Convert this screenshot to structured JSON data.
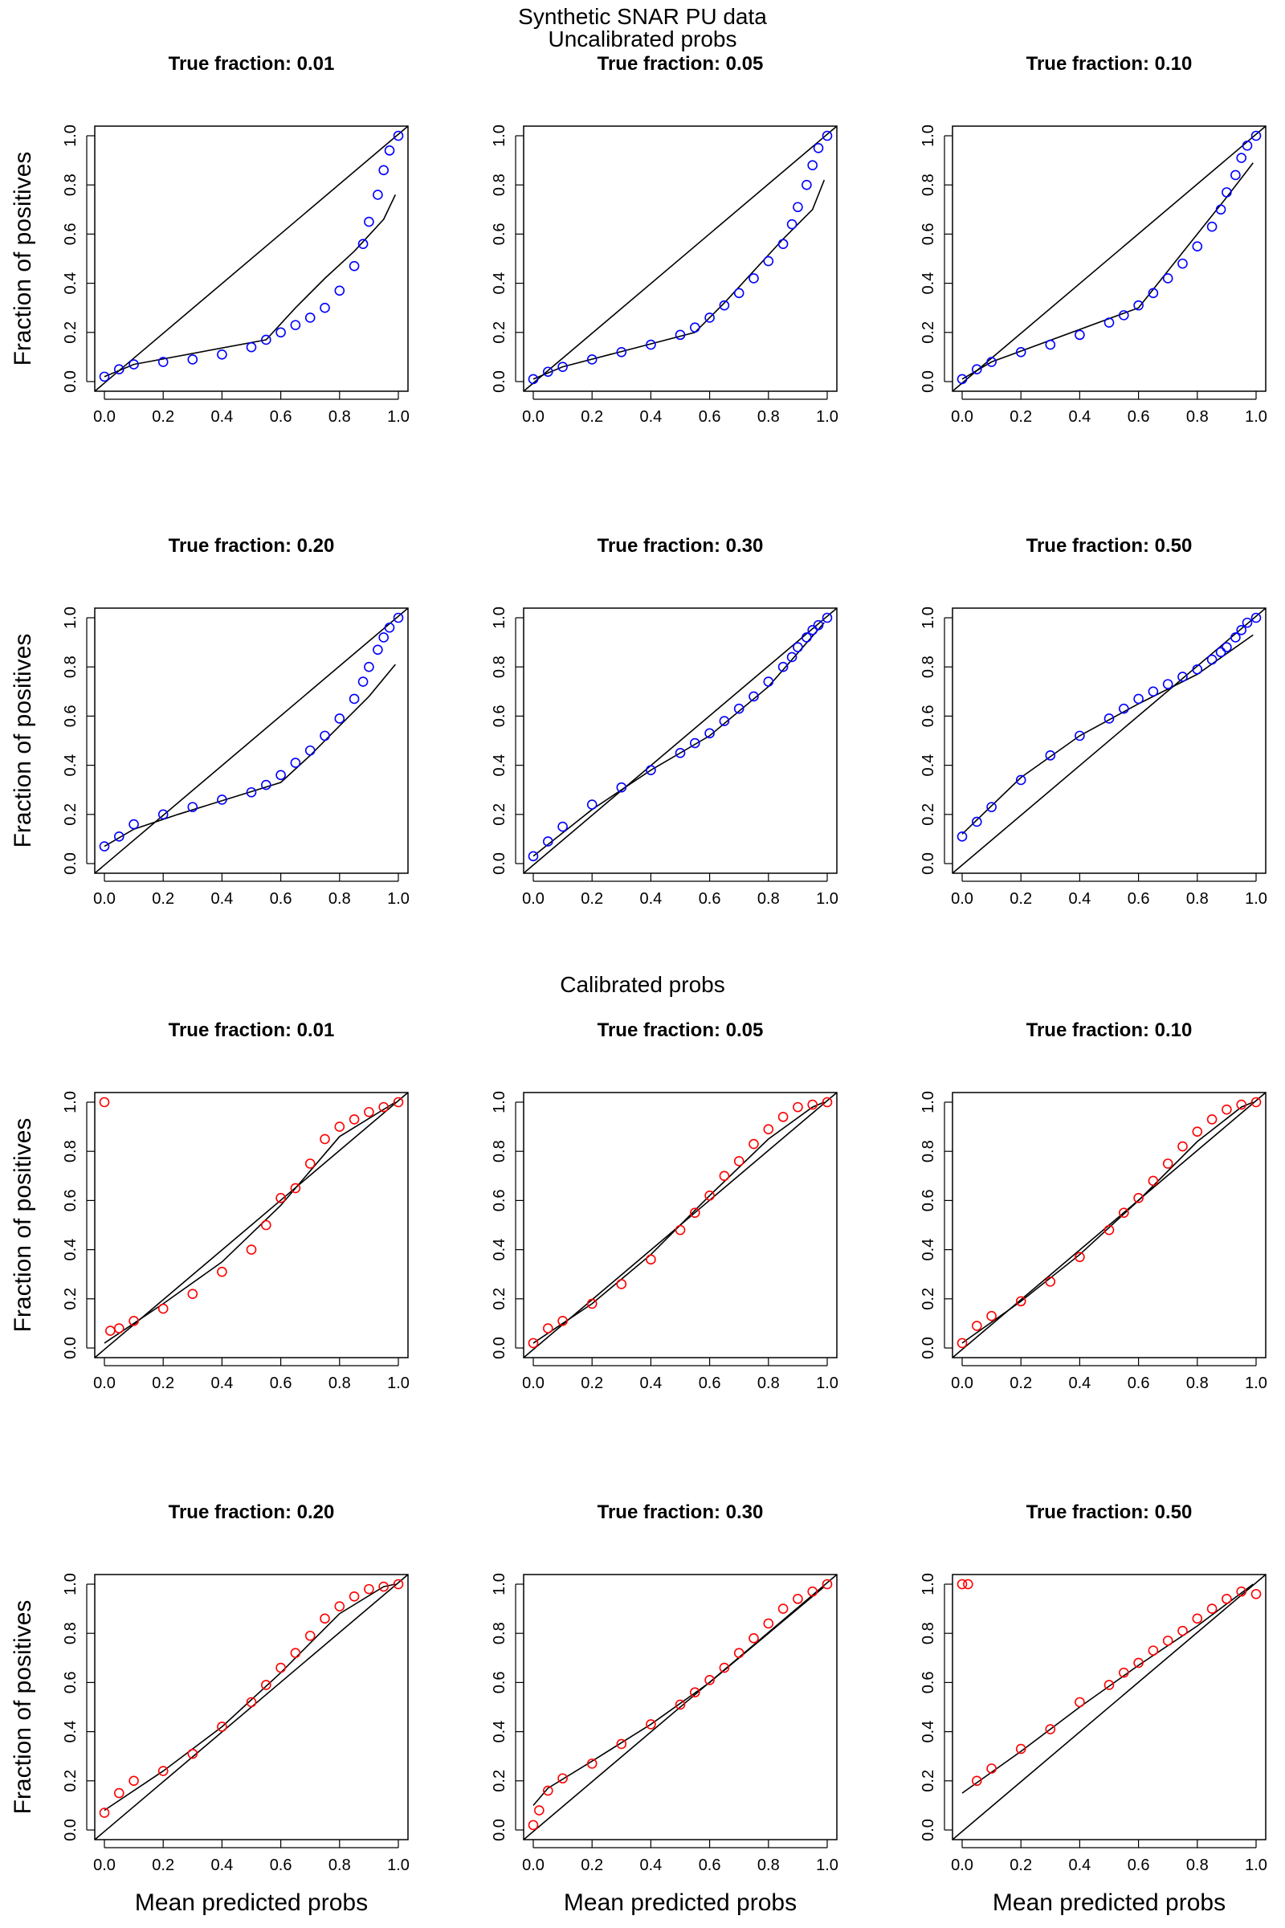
{
  "figure": {
    "main_title": "Synthetic SNAR PU data",
    "main_title_color": "#a52a2a",
    "section_uncalibrated": "Uncalibrated probs",
    "section_uncalibrated_color": "#0000ff",
    "section_calibrated": "Calibrated probs",
    "section_calibrated_color": "#ff0000",
    "ylabel": "Fraction of positives",
    "xlabel": "Mean predicted probs",
    "tick_labels": [
      "0.0",
      "0.2",
      "0.4",
      "0.6",
      "0.8",
      "1.0"
    ]
  },
  "chart_data": [
    {
      "type": "scatter",
      "group": "uncalibrated",
      "title": "True fraction: 0.01",
      "xlim": [
        0,
        1
      ],
      "ylim": [
        0,
        1
      ],
      "xlabel": "",
      "ylabel": "Fraction of positives",
      "point_color": "#0000ff",
      "points": {
        "x": [
          0.0,
          0.05,
          0.1,
          0.2,
          0.3,
          0.4,
          0.5,
          0.55,
          0.6,
          0.65,
          0.7,
          0.75,
          0.8,
          0.85,
          0.88,
          0.9,
          0.93,
          0.95,
          0.97,
          1.0
        ],
        "y": [
          0.02,
          0.05,
          0.07,
          0.08,
          0.09,
          0.11,
          0.14,
          0.17,
          0.2,
          0.23,
          0.26,
          0.3,
          0.37,
          0.47,
          0.56,
          0.65,
          0.76,
          0.86,
          0.94,
          1.0
        ]
      },
      "fit_line": {
        "x": [
          0.0,
          0.1,
          0.55,
          0.65,
          0.75,
          0.85,
          0.95,
          0.99
        ],
        "y": [
          0.02,
          0.07,
          0.17,
          0.3,
          0.42,
          0.53,
          0.66,
          0.76
        ]
      }
    },
    {
      "type": "scatter",
      "group": "uncalibrated",
      "title": "True fraction: 0.05",
      "xlim": [
        0,
        1
      ],
      "ylim": [
        0,
        1
      ],
      "xlabel": "",
      "ylabel": "",
      "point_color": "#0000ff",
      "points": {
        "x": [
          0.0,
          0.05,
          0.1,
          0.2,
          0.3,
          0.4,
          0.5,
          0.55,
          0.6,
          0.65,
          0.7,
          0.75,
          0.8,
          0.85,
          0.88,
          0.9,
          0.93,
          0.95,
          0.97,
          1.0
        ],
        "y": [
          0.01,
          0.04,
          0.06,
          0.09,
          0.12,
          0.15,
          0.19,
          0.22,
          0.26,
          0.31,
          0.36,
          0.42,
          0.49,
          0.56,
          0.64,
          0.71,
          0.8,
          0.88,
          0.95,
          1.0
        ]
      },
      "fit_line": {
        "x": [
          0.0,
          0.1,
          0.55,
          0.65,
          0.75,
          0.85,
          0.95,
          0.99
        ],
        "y": [
          0.01,
          0.06,
          0.2,
          0.32,
          0.45,
          0.58,
          0.7,
          0.82
        ]
      }
    },
    {
      "type": "scatter",
      "group": "uncalibrated",
      "title": "True fraction: 0.10",
      "xlim": [
        0,
        1
      ],
      "ylim": [
        0,
        1
      ],
      "xlabel": "",
      "ylabel": "",
      "point_color": "#0000ff",
      "points": {
        "x": [
          0.0,
          0.05,
          0.1,
          0.2,
          0.3,
          0.4,
          0.5,
          0.55,
          0.6,
          0.65,
          0.7,
          0.75,
          0.8,
          0.85,
          0.88,
          0.9,
          0.93,
          0.95,
          0.97,
          1.0
        ],
        "y": [
          0.01,
          0.05,
          0.08,
          0.12,
          0.15,
          0.19,
          0.24,
          0.27,
          0.31,
          0.36,
          0.42,
          0.48,
          0.55,
          0.63,
          0.7,
          0.77,
          0.84,
          0.91,
          0.96,
          1.0
        ]
      },
      "fit_line": {
        "x": [
          0.0,
          0.1,
          0.6,
          0.7,
          0.8,
          0.9,
          0.99
        ],
        "y": [
          0.01,
          0.08,
          0.3,
          0.45,
          0.6,
          0.75,
          0.89
        ]
      }
    },
    {
      "type": "scatter",
      "group": "uncalibrated",
      "title": "True fraction: 0.20",
      "xlim": [
        0,
        1
      ],
      "ylim": [
        0,
        1
      ],
      "xlabel": "",
      "ylabel": "Fraction of positives",
      "point_color": "#0000ff",
      "points": {
        "x": [
          0.0,
          0.05,
          0.1,
          0.2,
          0.3,
          0.4,
          0.5,
          0.55,
          0.6,
          0.65,
          0.7,
          0.75,
          0.8,
          0.85,
          0.88,
          0.9,
          0.93,
          0.95,
          0.97,
          1.0
        ],
        "y": [
          0.07,
          0.11,
          0.16,
          0.2,
          0.23,
          0.26,
          0.29,
          0.32,
          0.36,
          0.41,
          0.46,
          0.52,
          0.59,
          0.67,
          0.74,
          0.8,
          0.87,
          0.92,
          0.96,
          1.0
        ]
      },
      "fit_line": {
        "x": [
          0.0,
          0.1,
          0.25,
          0.6,
          0.7,
          0.8,
          0.9,
          0.99
        ],
        "y": [
          0.07,
          0.14,
          0.2,
          0.33,
          0.44,
          0.56,
          0.68,
          0.81
        ]
      }
    },
    {
      "type": "scatter",
      "group": "uncalibrated",
      "title": "True fraction: 0.30",
      "xlim": [
        0,
        1
      ],
      "ylim": [
        0,
        1
      ],
      "xlabel": "",
      "ylabel": "",
      "point_color": "#0000ff",
      "points": {
        "x": [
          0.0,
          0.05,
          0.1,
          0.2,
          0.3,
          0.4,
          0.5,
          0.55,
          0.6,
          0.65,
          0.7,
          0.75,
          0.8,
          0.85,
          0.88,
          0.9,
          0.93,
          0.95,
          0.97,
          1.0
        ],
        "y": [
          0.03,
          0.09,
          0.15,
          0.24,
          0.31,
          0.38,
          0.45,
          0.49,
          0.53,
          0.58,
          0.63,
          0.68,
          0.74,
          0.8,
          0.84,
          0.88,
          0.92,
          0.95,
          0.97,
          1.0
        ]
      },
      "fit_line": {
        "x": [
          0.0,
          0.2,
          0.4,
          0.6,
          0.8,
          0.99
        ],
        "y": [
          0.03,
          0.22,
          0.38,
          0.52,
          0.72,
          0.98
        ]
      }
    },
    {
      "type": "scatter",
      "group": "uncalibrated",
      "title": "True fraction: 0.50",
      "xlim": [
        0,
        1
      ],
      "ylim": [
        0,
        1
      ],
      "xlabel": "",
      "ylabel": "",
      "point_color": "#0000ff",
      "points": {
        "x": [
          0.0,
          0.05,
          0.1,
          0.2,
          0.3,
          0.4,
          0.5,
          0.55,
          0.6,
          0.65,
          0.7,
          0.75,
          0.8,
          0.85,
          0.88,
          0.9,
          0.93,
          0.95,
          0.97,
          1.0
        ],
        "y": [
          0.11,
          0.17,
          0.23,
          0.34,
          0.44,
          0.52,
          0.59,
          0.63,
          0.67,
          0.7,
          0.73,
          0.76,
          0.79,
          0.83,
          0.86,
          0.88,
          0.92,
          0.95,
          0.98,
          1.0
        ]
      },
      "fit_line": {
        "x": [
          0.0,
          0.2,
          0.4,
          0.6,
          0.8,
          0.99
        ],
        "y": [
          0.12,
          0.35,
          0.52,
          0.65,
          0.77,
          0.93
        ]
      }
    },
    {
      "type": "scatter",
      "group": "calibrated",
      "title": "True fraction: 0.01",
      "xlim": [
        0,
        1
      ],
      "ylim": [
        0,
        1
      ],
      "xlabel": "",
      "ylabel": "Fraction of positives",
      "point_color": "#ff0000",
      "points": {
        "x": [
          0.0,
          0.02,
          0.05,
          0.1,
          0.2,
          0.3,
          0.4,
          0.5,
          0.55,
          0.6,
          0.65,
          0.7,
          0.75,
          0.8,
          0.85,
          0.9,
          0.95,
          1.0
        ],
        "y": [
          1.0,
          0.07,
          0.08,
          0.11,
          0.16,
          0.22,
          0.31,
          0.4,
          0.5,
          0.61,
          0.65,
          0.75,
          0.85,
          0.9,
          0.93,
          0.96,
          0.98,
          1.0
        ]
      },
      "fit_line": {
        "x": [
          0.0,
          0.2,
          0.4,
          0.6,
          0.8,
          0.99
        ],
        "y": [
          0.02,
          0.18,
          0.35,
          0.58,
          0.86,
          1.0
        ]
      }
    },
    {
      "type": "scatter",
      "group": "calibrated",
      "title": "True fraction: 0.05",
      "xlim": [
        0,
        1
      ],
      "ylim": [
        0,
        1
      ],
      "xlabel": "",
      "ylabel": "",
      "point_color": "#ff0000",
      "points": {
        "x": [
          0.0,
          0.05,
          0.1,
          0.2,
          0.3,
          0.4,
          0.5,
          0.55,
          0.6,
          0.65,
          0.7,
          0.75,
          0.8,
          0.85,
          0.9,
          0.95,
          1.0
        ],
        "y": [
          0.02,
          0.08,
          0.11,
          0.18,
          0.26,
          0.36,
          0.48,
          0.55,
          0.62,
          0.7,
          0.76,
          0.83,
          0.89,
          0.94,
          0.98,
          0.99,
          1.0
        ]
      },
      "fit_line": {
        "x": [
          0.0,
          0.2,
          0.4,
          0.6,
          0.8,
          0.95,
          0.99
        ],
        "y": [
          0.02,
          0.18,
          0.38,
          0.62,
          0.85,
          0.98,
          1.0
        ]
      }
    },
    {
      "type": "scatter",
      "group": "calibrated",
      "title": "True fraction: 0.10",
      "xlim": [
        0,
        1
      ],
      "ylim": [
        0,
        1
      ],
      "xlabel": "",
      "ylabel": "",
      "point_color": "#ff0000",
      "points": {
        "x": [
          0.0,
          0.05,
          0.1,
          0.2,
          0.3,
          0.4,
          0.5,
          0.55,
          0.6,
          0.65,
          0.7,
          0.75,
          0.8,
          0.85,
          0.9,
          0.95,
          1.0
        ],
        "y": [
          0.02,
          0.09,
          0.13,
          0.19,
          0.27,
          0.37,
          0.48,
          0.55,
          0.61,
          0.68,
          0.75,
          0.82,
          0.88,
          0.93,
          0.97,
          0.99,
          1.0
        ]
      },
      "fit_line": {
        "x": [
          0.0,
          0.2,
          0.4,
          0.6,
          0.8,
          0.95,
          0.99
        ],
        "y": [
          0.02,
          0.19,
          0.38,
          0.6,
          0.84,
          0.98,
          1.0
        ]
      }
    },
    {
      "type": "scatter",
      "group": "calibrated",
      "title": "True fraction: 0.20",
      "xlim": [
        0,
        1
      ],
      "ylim": [
        0,
        1
      ],
      "xlabel": "Mean predicted probs",
      "ylabel": "Fraction of positives",
      "point_color": "#ff0000",
      "points": {
        "x": [
          0.0,
          0.05,
          0.1,
          0.2,
          0.3,
          0.4,
          0.5,
          0.55,
          0.6,
          0.65,
          0.7,
          0.75,
          0.8,
          0.85,
          0.9,
          0.95,
          1.0
        ],
        "y": [
          0.07,
          0.15,
          0.2,
          0.24,
          0.31,
          0.42,
          0.52,
          0.59,
          0.66,
          0.72,
          0.79,
          0.86,
          0.91,
          0.95,
          0.98,
          0.99,
          1.0
        ]
      },
      "fit_line": {
        "x": [
          0.0,
          0.2,
          0.4,
          0.6,
          0.8,
          0.95,
          0.99
        ],
        "y": [
          0.08,
          0.24,
          0.42,
          0.64,
          0.88,
          0.99,
          1.0
        ]
      }
    },
    {
      "type": "scatter",
      "group": "calibrated",
      "title": "True fraction: 0.30",
      "xlim": [
        0,
        1
      ],
      "ylim": [
        0,
        1
      ],
      "xlabel": "Mean predicted probs",
      "ylabel": "",
      "point_color": "#ff0000",
      "points": {
        "x": [
          0.0,
          0.02,
          0.05,
          0.1,
          0.2,
          0.3,
          0.4,
          0.5,
          0.55,
          0.6,
          0.65,
          0.7,
          0.75,
          0.8,
          0.85,
          0.9,
          0.95,
          1.0
        ],
        "y": [
          0.02,
          0.08,
          0.16,
          0.21,
          0.27,
          0.35,
          0.43,
          0.51,
          0.56,
          0.61,
          0.66,
          0.72,
          0.78,
          0.84,
          0.9,
          0.94,
          0.97,
          1.0
        ]
      },
      "fit_line": {
        "x": [
          0.0,
          0.05,
          0.2,
          0.4,
          0.6,
          0.8,
          0.99
        ],
        "y": [
          0.1,
          0.17,
          0.28,
          0.43,
          0.6,
          0.8,
          0.99
        ]
      }
    },
    {
      "type": "scatter",
      "group": "calibrated",
      "title": "True fraction: 0.50",
      "xlim": [
        0,
        1
      ],
      "ylim": [
        0,
        1
      ],
      "xlabel": "Mean predicted probs",
      "ylabel": "",
      "point_color": "#ff0000",
      "points": {
        "x": [
          0.0,
          0.02,
          0.05,
          0.1,
          0.2,
          0.3,
          0.4,
          0.5,
          0.55,
          0.6,
          0.65,
          0.7,
          0.75,
          0.8,
          0.85,
          0.9,
          0.95,
          1.0
        ],
        "y": [
          1.0,
          1.0,
          0.2,
          0.25,
          0.33,
          0.41,
          0.52,
          0.59,
          0.64,
          0.68,
          0.73,
          0.77,
          0.81,
          0.86,
          0.9,
          0.94,
          0.97,
          0.96
        ]
      },
      "fit_line": {
        "x": [
          0.0,
          0.2,
          0.4,
          0.6,
          0.8,
          0.99
        ],
        "y": [
          0.15,
          0.32,
          0.5,
          0.67,
          0.83,
          1.0
        ]
      }
    }
  ]
}
